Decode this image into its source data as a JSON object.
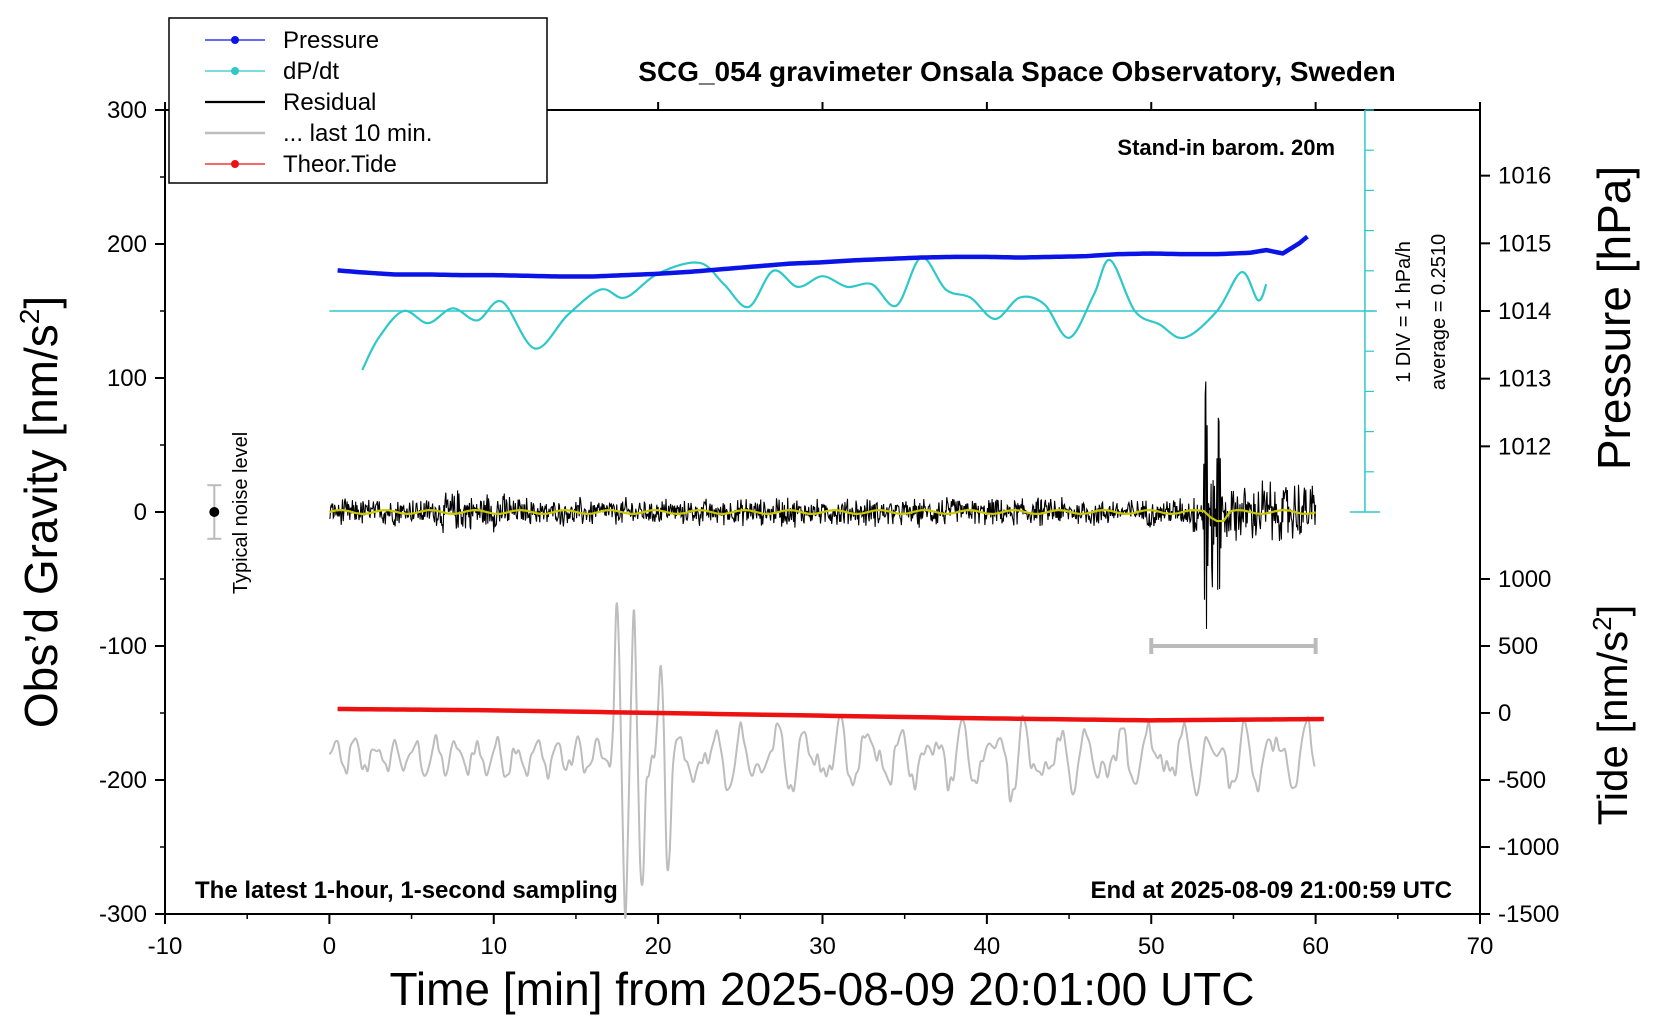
{
  "chart_data": {
    "type": "line",
    "title": "SCG_054 gravimeter Onsala Space Observatory, Sweden",
    "xlabel": "Time [min] from 2025-08-09 20:01:00 UTC",
    "ylabel_left": "Obs’d Gravity [nm/s",
    "ylabel_left_exp": "2",
    "ylabel_left_close": "]",
    "ylabel_right_top": "Pressure [hPa]",
    "ylabel_right_bottom": "Tide [nm/s",
    "ylabel_right_bottom_exp": "2",
    "ylabel_right_bottom_close": "]",
    "xlim": [
      -10,
      70
    ],
    "ylim": [
      -300,
      300
    ],
    "x_ticks": [
      "-10",
      "0",
      "10",
      "20",
      "30",
      "40",
      "50",
      "60",
      "70"
    ],
    "y_ticks": [
      "-300",
      "-200",
      "-100",
      "0",
      "100",
      "200",
      "300"
    ],
    "pressure_ticks": [
      "1012",
      "1013",
      "1014",
      "1015",
      "1016"
    ],
    "tide_ticks": [
      "-1500",
      "-1000",
      "-500",
      "0",
      "500",
      "1000"
    ],
    "annotations": {
      "barometer": "Stand-in barom. 20m",
      "latest": "The latest 1-hour, 1-second sampling",
      "end_time": "End at 2025-08-09 21:00:59 UTC",
      "noise": "Typical noise level",
      "dpdt_scale": "1 DIV = 1 hPa/h",
      "dpdt_average": "average = 0.2510"
    },
    "legend": {
      "placement": "top-left, outside",
      "entries": [
        "Pressure",
        "dP/dt",
        "Residual",
        "... last 10 min.",
        "Theor.Tide"
      ]
    },
    "colors": {
      "pressure": "#0a14e6",
      "dpdt": "#2ec8c8",
      "residual": "#000000",
      "residual_smooth": "#c8c800",
      "last10": "#bdbdbd",
      "tide": "#ee1111"
    },
    "series": [
      {
        "name": "Pressure",
        "axis": "pressure_hPa",
        "x": [
          0.5,
          2,
          4,
          6,
          8,
          10,
          12,
          14,
          16,
          18,
          20,
          22,
          24,
          26,
          28,
          30,
          32,
          34,
          36,
          38,
          40,
          42,
          44,
          46,
          48,
          50,
          52,
          54,
          56,
          57,
          58,
          59,
          59.5
        ],
        "y": [
          1014.6,
          1014.57,
          1014.54,
          1014.54,
          1014.53,
          1014.53,
          1014.52,
          1014.51,
          1014.51,
          1014.53,
          1014.55,
          1014.58,
          1014.62,
          1014.66,
          1014.7,
          1014.72,
          1014.75,
          1014.77,
          1014.79,
          1014.8,
          1014.8,
          1014.79,
          1014.8,
          1014.81,
          1014.84,
          1014.85,
          1014.84,
          1014.84,
          1014.86,
          1014.9,
          1014.85,
          1015.0,
          1015.1
        ]
      },
      {
        "name": "dP/dt",
        "axis": "gravity_scaled",
        "x": [
          2,
          3,
          4.5,
          6,
          7.5,
          9,
          10.5,
          12.5,
          14.5,
          16.5,
          18,
          20,
          22.5,
          24,
          25.5,
          27,
          28.5,
          30,
          31.5,
          33,
          34.5,
          36,
          37.5,
          39,
          40.5,
          42,
          43.5,
          45,
          46.5,
          47.5,
          49,
          50.5,
          52,
          54,
          55.5,
          56.5,
          57
        ],
        "y": [
          106,
          130,
          150,
          141,
          152,
          143,
          157,
          122,
          147,
          166,
          160,
          178,
          186,
          170,
          153,
          180,
          168,
          176,
          168,
          170,
          154,
          190,
          166,
          160,
          144,
          160,
          155,
          130,
          162,
          188,
          150,
          140,
          130,
          150,
          179,
          158,
          170
        ]
      },
      {
        "name": "Residual",
        "axis": "gravity",
        "x": [
          0,
          60
        ],
        "y": [
          0,
          0
        ],
        "features": {
          "typical_amplitude": 8,
          "event_window": [
            52.5,
            60
          ],
          "event_peaks": [
            [
              53.2,
              110
            ],
            [
              53.3,
              -115
            ],
            [
              53.8,
              80
            ],
            [
              54.1,
              -70
            ]
          ]
        }
      },
      {
        "name": "... last 10 min.",
        "axis": "gravity",
        "baseline": -183,
        "x_span": [
          0,
          60
        ],
        "event_peaks": [
          [
            17.5,
            -75
          ],
          [
            18.0,
            -298
          ],
          [
            18.5,
            -78
          ],
          [
            19.0,
            -290
          ],
          [
            20.2,
            -118
          ],
          [
            20.6,
            -260
          ]
        ]
      },
      {
        "name": "Theor.Tide",
        "axis": "tide_nm_s2",
        "x": [
          0.5,
          10,
          20,
          30,
          40,
          50,
          60.5
        ],
        "y": [
          30,
          20,
          0,
          -20,
          -40,
          -55,
          -45
        ]
      }
    ],
    "noise_bar": {
      "x": -7,
      "y": 0,
      "half_range": 20
    },
    "last10_bar": {
      "x_start": 50,
      "x_end": 60,
      "y": -100
    },
    "dpdt_reference": {
      "x": 63,
      "y_top": 300,
      "y_bottom": 0,
      "level": 150
    }
  }
}
